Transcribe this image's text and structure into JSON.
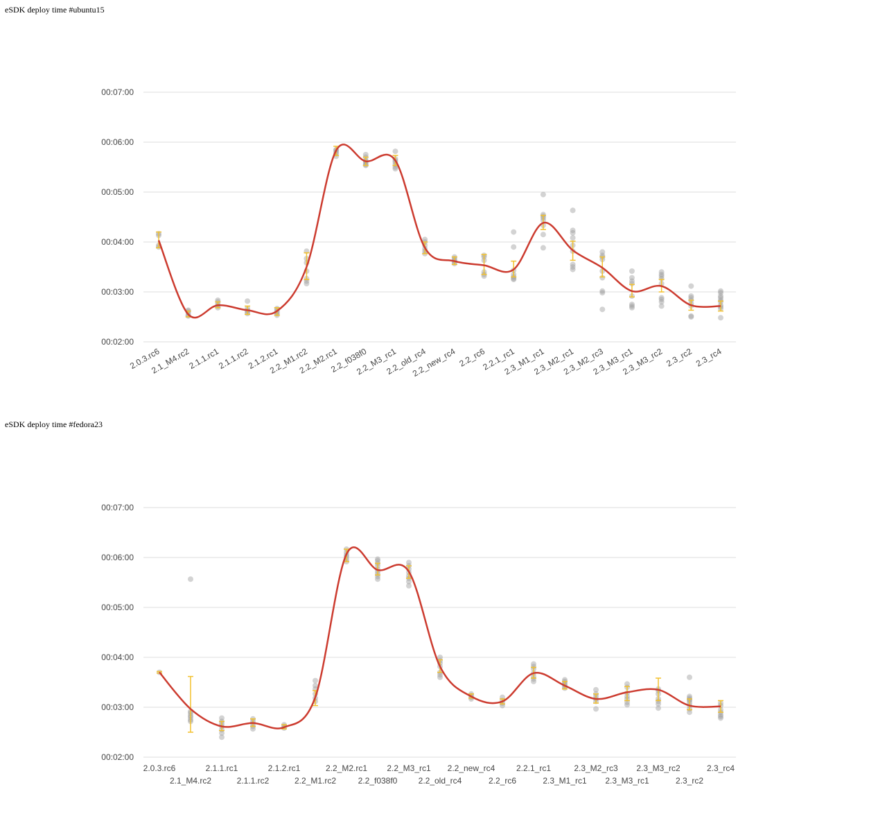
{
  "charts_meta": [
    {
      "title": "eSDK deploy time #ubuntu15"
    },
    {
      "title": "eSDK deploy time #fedora23"
    }
  ],
  "colors": {
    "line": "#cc3b2f",
    "point": "#9e9e9e",
    "error_bar": "#f2c12e",
    "grid": "#dddddd"
  },
  "chart_data": [
    {
      "type": "line",
      "title": "eSDK deploy time #ubuntu15",
      "x_label_style": "rotated",
      "categories": [
        "2.0.3.rc6",
        "2.1_M4.rc2",
        "2.1.1.rc1",
        "2.1.1.rc2",
        "2.1.2.rc1",
        "2.2_M1.rc2",
        "2.2_M2.rc1",
        "2.2_f038f0",
        "2.2_M3_rc1",
        "2.2_old_rc4",
        "2.2_new_rc4",
        "2.2_rc6",
        "2.2.1_rc1",
        "2.3_M1_rc1",
        "2.3_M2_rc1",
        "2.3_M2_rc3",
        "2.3_M3_rc1",
        "2.3_M3_rc2",
        "2.3_rc2",
        "2.3_rc4"
      ],
      "y_ticks": [
        "00:02:00",
        "00:03:00",
        "00:04:00",
        "00:05:00",
        "00:06:00",
        "00:07:00"
      ],
      "ylim_seconds": [
        120,
        420
      ],
      "series": [
        {
          "values_seconds": [
            242,
            153,
            164,
            158,
            157,
            210,
            350,
            337,
            338,
            233,
            217,
            212,
            207,
            263,
            230,
            209,
            181,
            187,
            164,
            163
          ]
        }
      ],
      "error_bars_seconds": [
        [
          233,
          252
        ],
        [
          150,
          157
        ],
        [
          161,
          168
        ],
        [
          153,
          163
        ],
        [
          152,
          161
        ],
        [
          195,
          227
        ],
        [
          344,
          355
        ],
        [
          332,
          342
        ],
        [
          332,
          344
        ],
        [
          226,
          240
        ],
        [
          213,
          222
        ],
        [
          201,
          225
        ],
        [
          198,
          217
        ],
        [
          255,
          272
        ],
        [
          218,
          241
        ],
        [
          198,
          222
        ],
        [
          174,
          189
        ],
        [
          180,
          195
        ],
        [
          158,
          170
        ],
        [
          157,
          169
        ]
      ],
      "runs_seconds": [
        [
          234,
          236,
          248,
          250
        ],
        [
          151,
          152,
          155,
          157,
          158
        ],
        [
          161,
          163,
          165,
          168,
          170
        ],
        [
          154,
          156,
          158,
          160,
          169
        ],
        [
          152,
          154,
          156,
          158,
          160
        ],
        [
          190,
          193,
          196,
          205,
          215,
          220,
          229
        ],
        [
          343,
          346,
          348,
          350,
          351
        ],
        [
          332,
          333,
          335,
          337,
          338,
          342,
          345
        ],
        [
          328,
          330,
          333,
          336,
          338,
          340,
          349
        ],
        [
          226,
          229,
          232,
          236,
          240,
          243
        ],
        [
          214,
          216,
          218,
          220,
          222
        ],
        [
          199,
          201,
          204,
          218,
          222,
          224
        ],
        [
          195,
          196,
          198,
          201,
          206,
          234,
          252
        ],
        [
          233,
          249,
          260,
          266,
          269,
          271,
          273,
          297
        ],
        [
          207,
          210,
          213,
          229,
          236,
          245,
          251,
          254,
          278
        ],
        [
          159,
          179,
          181,
          197,
          205,
          219,
          222,
          224,
          228
        ],
        [
          161,
          163,
          165,
          175,
          190,
          193,
          197,
          205
        ],
        [
          163,
          168,
          171,
          173,
          190,
          196,
          199,
          201,
          204
        ],
        [
          150,
          151,
          163,
          166,
          170,
          173,
          175,
          187
        ],
        [
          149,
          160,
          162,
          164,
          168,
          170,
          173,
          175,
          179,
          181
        ]
      ]
    },
    {
      "type": "line",
      "title": "eSDK deploy time #fedora23",
      "x_label_style": "staggered",
      "categories": [
        "2.0.3.rc6",
        "2.1_M4.rc2",
        "2.1.1.rc1",
        "2.1.1.rc2",
        "2.1.2.rc1",
        "2.2_M1.rc2",
        "2.2_M2.rc1",
        "2.2_f038f0",
        "2.2_M3_rc1",
        "2.2_old_rc4",
        "2.2_new_rc4",
        "2.2_rc6",
        "2.2.1_rc1",
        "2.3_M1_rc1",
        "2.3_M2_rc3",
        "2.3_M3_rc1",
        "2.3_M3_rc2",
        "2.3_rc2",
        "2.3_rc4"
      ],
      "y_ticks": [
        "00:02:00",
        "00:03:00",
        "00:04:00",
        "00:05:00",
        "00:06:00",
        "00:07:00"
      ],
      "ylim_seconds": [
        120,
        420
      ],
      "series": [
        {
          "values_seconds": [
            222,
            178,
            157,
            161,
            156,
            192,
            364,
            345,
            343,
            229,
            193,
            187,
            221,
            206,
            190,
            198,
            201,
            182,
            181
          ]
        }
      ],
      "error_bars_seconds": [
        [
          221,
          223
        ],
        [
          150,
          217
        ],
        [
          152,
          163
        ],
        [
          157,
          166
        ],
        [
          154,
          159
        ],
        [
          182,
          200
        ],
        [
          355,
          370
        ],
        [
          339,
          353
        ],
        [
          335,
          350
        ],
        [
          222,
          237
        ],
        [
          191,
          196
        ],
        [
          184,
          190
        ],
        [
          215,
          228
        ],
        [
          202,
          211
        ],
        [
          185,
          196
        ],
        [
          188,
          205
        ],
        [
          188,
          215
        ],
        [
          177,
          190
        ],
        [
          174,
          188
        ]
      ],
      "runs_seconds": [
        [
          222
        ],
        [
          163,
          165,
          168,
          170,
          173,
          175,
          334
        ],
        [
          144,
          149,
          153,
          157,
          160,
          163,
          167
        ],
        [
          154,
          157,
          160,
          163,
          166
        ],
        [
          155,
          157,
          159
        ],
        [
          187,
          191,
          196,
          202,
          206,
          212
        ],
        [
          355,
          358,
          361,
          363,
          366,
          370
        ],
        [
          334,
          337,
          340,
          343,
          346,
          350,
          353,
          356,
          358
        ],
        [
          326,
          331,
          335,
          338,
          342,
          346,
          350,
          354
        ],
        [
          216,
          219,
          222,
          229,
          233,
          236,
          240
        ],
        [
          190,
          192,
          194,
          196
        ],
        [
          182,
          185,
          188,
          192
        ],
        [
          211,
          214,
          217,
          221,
          226,
          229,
          232
        ],
        [
          203,
          205,
          207,
          209,
          211,
          213
        ],
        [
          178,
          187,
          190,
          193,
          196,
          201
        ],
        [
          183,
          186,
          190,
          193,
          197,
          204,
          208
        ],
        [
          179,
          184,
          187,
          190,
          196,
          200,
          202
        ],
        [
          174,
          178,
          182,
          185,
          188,
          189,
          191,
          193,
          216
        ],
        [
          167,
          169,
          171,
          174,
          177,
          182,
          185
        ]
      ]
    }
  ]
}
